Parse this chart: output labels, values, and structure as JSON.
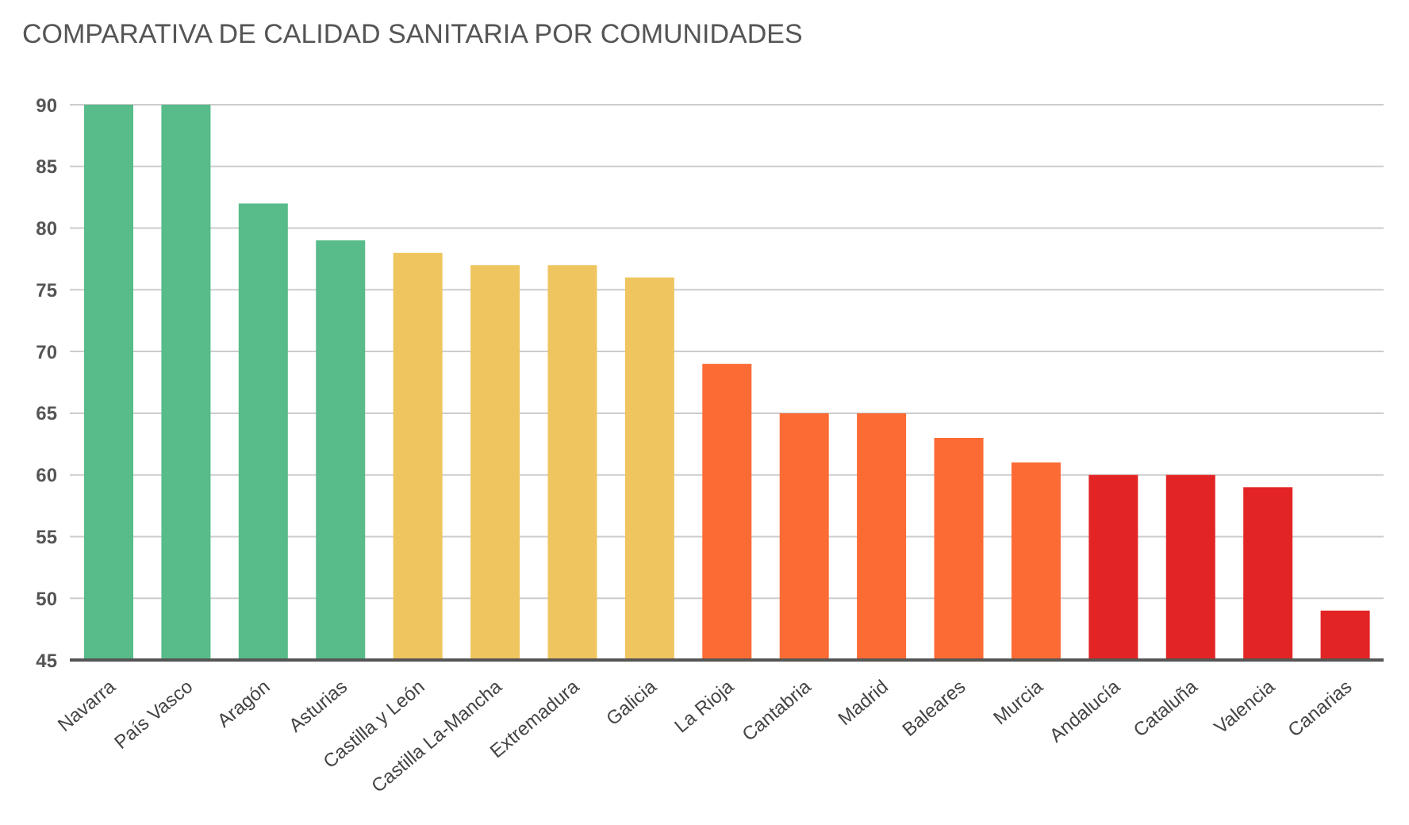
{
  "chart_data": {
    "type": "bar",
    "title": "COMPARATIVA DE CALIDAD SANITARIA POR COMUNIDADES",
    "categories": [
      "Navarra",
      "País Vasco",
      "Aragón",
      "Asturias",
      "Castilla y León",
      "Castilla La-Mancha",
      "Extremadura",
      "Galicia",
      "La Rioja",
      "Cantabria",
      "Madrid",
      "Baleares",
      "Murcia",
      "Andalucía",
      "Cataluña",
      "Valencia",
      "Canarias"
    ],
    "values": [
      90,
      90,
      82,
      79,
      78,
      77,
      77,
      76,
      69,
      65,
      65,
      63,
      61,
      60,
      60,
      59,
      49
    ],
    "colors": [
      "#57bb8a",
      "#57bb8a",
      "#57bb8a",
      "#57bb8a",
      "#eec55f",
      "#eec55f",
      "#eec55f",
      "#eec55f",
      "#fd6b35",
      "#fd6b35",
      "#fd6b35",
      "#fd6b35",
      "#fd6b35",
      "#e32425",
      "#e32425",
      "#e32425",
      "#e32425"
    ],
    "ylim": [
      45,
      90
    ],
    "yticks": [
      45,
      50,
      55,
      60,
      65,
      70,
      75,
      80,
      85,
      90
    ],
    "grid": "y"
  }
}
